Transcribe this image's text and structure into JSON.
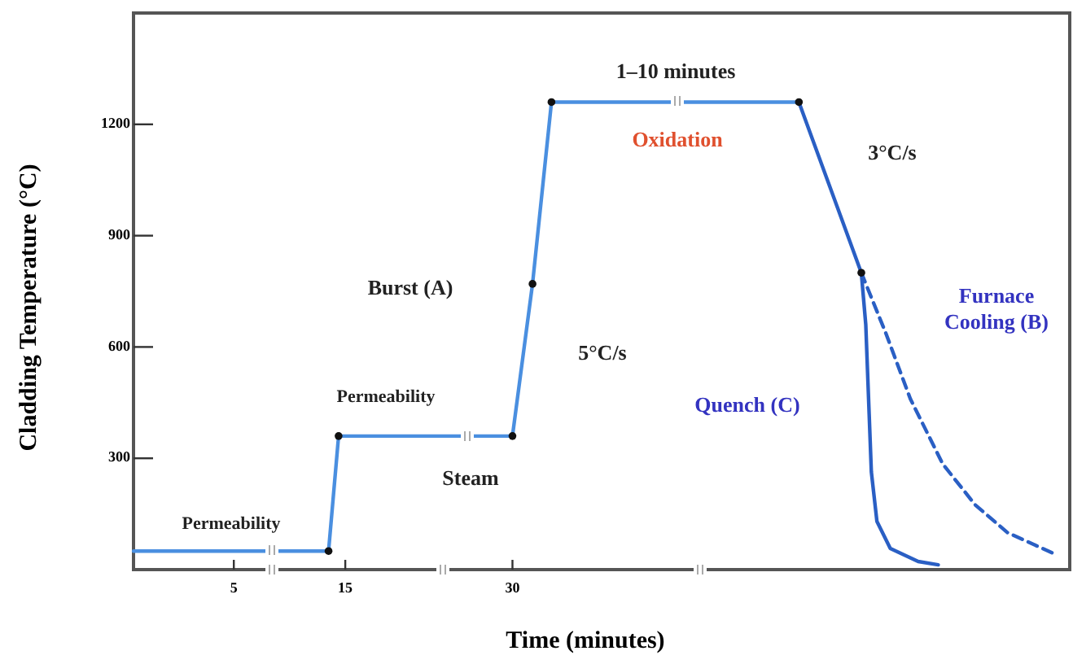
{
  "chart_data": {
    "type": "line",
    "xlabel": "Time  (minutes)",
    "ylabel": "Cladding Temperature (°C)",
    "xlim": [
      -4,
      80
    ],
    "xticks": [
      5,
      15,
      30
    ],
    "ylim": [
      0,
      1500
    ],
    "yticks": [
      300,
      600,
      900,
      1200
    ],
    "grid": false,
    "series": [
      {
        "color": "#4a8fe0",
        "line_style": "solid",
        "marker": "none",
        "x": [
          -4,
          13.5,
          14.4,
          30,
          31.8,
          33.5,
          55.7
        ],
        "values": [
          50,
          50,
          360,
          360,
          770,
          1260,
          1260
        ]
      },
      {
        "color": "#2a5fc4",
        "line_style": "solid",
        "marker": "none",
        "x": [
          55.7,
          61.3,
          61.7,
          62.2,
          62.7,
          63.9,
          66.4,
          68.2
        ],
        "values": [
          1260,
          800,
          660,
          263,
          130,
          57,
          22,
          13
        ]
      },
      {
        "color": "#2a5fc4",
        "line_style": "dashed",
        "marker": "none",
        "x": [
          61.3,
          63.5,
          65.7,
          68.6,
          71.5,
          74.4,
          78.5
        ],
        "values": [
          800,
          637,
          460,
          285,
          175,
          100,
          44
        ]
      },
      {
        "type": "scatter",
        "color": "#111111",
        "marker": "circle",
        "x": [
          13.5,
          14.4,
          30,
          31.8,
          33.5,
          55.7,
          61.3
        ],
        "values": [
          50,
          360,
          360,
          770,
          1260,
          1260,
          800
        ]
      }
    ],
    "annotations": [
      "Permeability",
      "Permeability",
      "Steam",
      "Burst (A)",
      "5°C/s",
      "1–10 minutes",
      "Oxidation",
      "3°C/s",
      "Furnace\nCooling (B)",
      "Quench (C)"
    ]
  }
}
